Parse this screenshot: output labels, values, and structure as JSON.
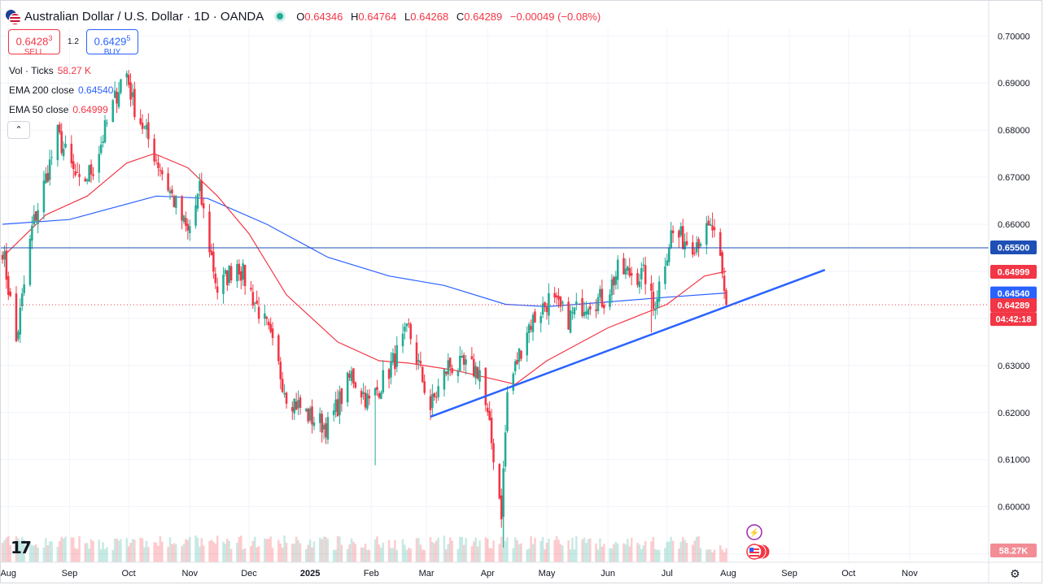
{
  "header": {
    "symbol_title": "Australian Dollar / U.S. Dollar · 1D · OANDA",
    "ohlc": [
      {
        "k": "O",
        "v": "0.64346"
      },
      {
        "k": "H",
        "v": "0.64764"
      },
      {
        "k": "L",
        "v": "0.64268"
      },
      {
        "k": "C",
        "v": "0.64289"
      }
    ],
    "change": "−0.00049 (−0.08%)"
  },
  "trade": {
    "sell_price": "0.6428",
    "sell_sup": "3",
    "sell_label": "SELL",
    "spread": "1.2",
    "buy_price": "0.6429",
    "buy_sup": "5",
    "buy_label": "BUY"
  },
  "indicators": {
    "vol_label": "Vol · Ticks",
    "vol_value": "58.27 K",
    "ema200_label": "EMA 200 close",
    "ema200_value": "0.64540",
    "ema50_label": "EMA 50 close",
    "ema50_value": "0.64999"
  },
  "controls": {
    "collapse_icon": "chevron-up-icon",
    "logo": "tradingview-logo",
    "settings_icon": "gear-icon"
  },
  "colors": {
    "up": "#22ab94",
    "down": "#f23645",
    "ema200": "#2962ff",
    "ema50": "#f23645",
    "trendline": "#2962ff",
    "hline": "#1e4fb5"
  },
  "chart_data": {
    "type": "candlestick",
    "price_ticks": [
      "0.70000",
      "0.69000",
      "0.68000",
      "0.67000",
      "0.66000",
      "0.65000",
      "0.64000",
      "0.63000",
      "0.62000",
      "0.61000",
      "0.60000",
      "0.59000"
    ],
    "price_range": [
      0.5882,
      0.7016
    ],
    "time_labels": [
      "Aug",
      "Sep",
      "Oct",
      "Nov",
      "Dec",
      "2025",
      "Feb",
      "Mar",
      "Apr",
      "May",
      "Jun",
      "Jul",
      "Aug",
      "Sep",
      "Oct",
      "Nov"
    ],
    "price_labels": [
      {
        "text": "0.65500",
        "value": 0.655,
        "role": "hline"
      },
      {
        "text": "0.64999",
        "value": 0.64999,
        "role": "ema50"
      },
      {
        "text": "0.64540",
        "value": 0.6454,
        "role": "ema200"
      },
      {
        "text": "0.64289",
        "value": 0.64289,
        "role": "last"
      },
      {
        "text": "04:42:18",
        "value": 0.64289,
        "role": "countdown"
      }
    ],
    "volume_label": "58.27K",
    "horizontal_line": 0.655,
    "last_price": 0.64289,
    "trendline": [
      {
        "date": "2025-03-03",
        "price": 0.6191
      },
      {
        "date": "2025-09-19",
        "price": 0.6503
      }
    ],
    "anchors": [
      [
        "2024-07-29",
        0.655
      ],
      [
        "2024-08-05",
        0.635
      ],
      [
        "2024-08-13",
        0.659
      ],
      [
        "2024-08-26",
        0.679
      ],
      [
        "2024-09-06",
        0.668
      ],
      [
        "2024-09-13",
        0.672
      ],
      [
        "2024-09-27",
        0.6905
      ],
      [
        "2024-09-30",
        0.692
      ],
      [
        "2024-10-03",
        0.686
      ],
      [
        "2024-10-18",
        0.671
      ],
      [
        "2024-10-31",
        0.658
      ],
      [
        "2024-11-06",
        0.667
      ],
      [
        "2024-11-15",
        0.646
      ],
      [
        "2024-11-25",
        0.652
      ],
      [
        "2024-12-10",
        0.638
      ],
      [
        "2024-12-20",
        0.624
      ],
      [
        "2025-01-01",
        0.619
      ],
      [
        "2025-01-10",
        0.617
      ],
      [
        "2025-01-22",
        0.628
      ],
      [
        "2025-01-31",
        0.622
      ],
      [
        "2025-02-10",
        0.629
      ],
      [
        "2025-02-20",
        0.6375
      ],
      [
        "2025-03-03",
        0.621
      ],
      [
        "2025-03-12",
        0.63
      ],
      [
        "2025-03-28",
        0.629
      ],
      [
        "2025-04-04",
        0.611
      ],
      [
        "2025-04-08",
        0.599
      ],
      [
        "2025-04-11",
        0.624
      ],
      [
        "2025-04-21",
        0.638
      ],
      [
        "2025-05-02",
        0.644
      ],
      [
        "2025-05-12",
        0.64
      ],
      [
        "2025-05-22",
        0.644
      ],
      [
        "2025-05-30",
        0.644
      ],
      [
        "2025-06-06",
        0.65
      ],
      [
        "2025-06-20",
        0.649
      ],
      [
        "2025-06-24",
        0.642
      ],
      [
        "2025-07-03",
        0.658
      ],
      [
        "2025-07-14",
        0.656
      ],
      [
        "2025-07-24",
        0.659
      ],
      [
        "2025-07-28",
        0.651
      ],
      [
        "2025-07-30",
        0.645
      ],
      [
        "2025-07-31",
        0.643
      ]
    ],
    "spikes": [
      {
        "date": "2024-08-05",
        "low": 0.6349
      },
      {
        "date": "2025-02-03",
        "low": 0.6088
      },
      {
        "date": "2025-04-09",
        "low": 0.5913
      },
      {
        "date": "2025-06-23",
        "low": 0.637
      },
      {
        "date": "2025-07-24",
        "high": 0.6625
      }
    ],
    "ema50_anchors": [
      [
        "2024-07-29",
        0.653
      ],
      [
        "2024-08-20",
        0.662
      ],
      [
        "2024-09-10",
        0.666
      ],
      [
        "2024-09-30",
        0.673
      ],
      [
        "2024-10-14",
        0.675
      ],
      [
        "2024-10-31",
        0.672
      ],
      [
        "2024-11-15",
        0.666
      ],
      [
        "2024-12-01",
        0.658
      ],
      [
        "2024-12-20",
        0.645
      ],
      [
        "2025-01-15",
        0.635
      ],
      [
        "2025-02-05",
        0.631
      ],
      [
        "2025-02-20",
        0.6305
      ],
      [
        "2025-03-15",
        0.629
      ],
      [
        "2025-04-05",
        0.627
      ],
      [
        "2025-04-15",
        0.626
      ],
      [
        "2025-05-01",
        0.631
      ],
      [
        "2025-06-01",
        0.638
      ],
      [
        "2025-07-01",
        0.643
      ],
      [
        "2025-07-20",
        0.649
      ],
      [
        "2025-07-31",
        0.65
      ]
    ],
    "ema200_anchors": [
      [
        "2024-07-29",
        0.66
      ],
      [
        "2024-09-01",
        0.661
      ],
      [
        "2024-10-15",
        0.666
      ],
      [
        "2024-11-10",
        0.6655
      ],
      [
        "2024-12-10",
        0.66
      ],
      [
        "2025-01-10",
        0.653
      ],
      [
        "2025-02-10",
        0.649
      ],
      [
        "2025-03-10",
        0.647
      ],
      [
        "2025-04-10",
        0.643
      ],
      [
        "2025-05-01",
        0.6425
      ],
      [
        "2025-06-01",
        0.6435
      ],
      [
        "2025-07-01",
        0.6445
      ],
      [
        "2025-07-31",
        0.6454
      ]
    ],
    "volume_range": [
      0,
      40
    ]
  }
}
